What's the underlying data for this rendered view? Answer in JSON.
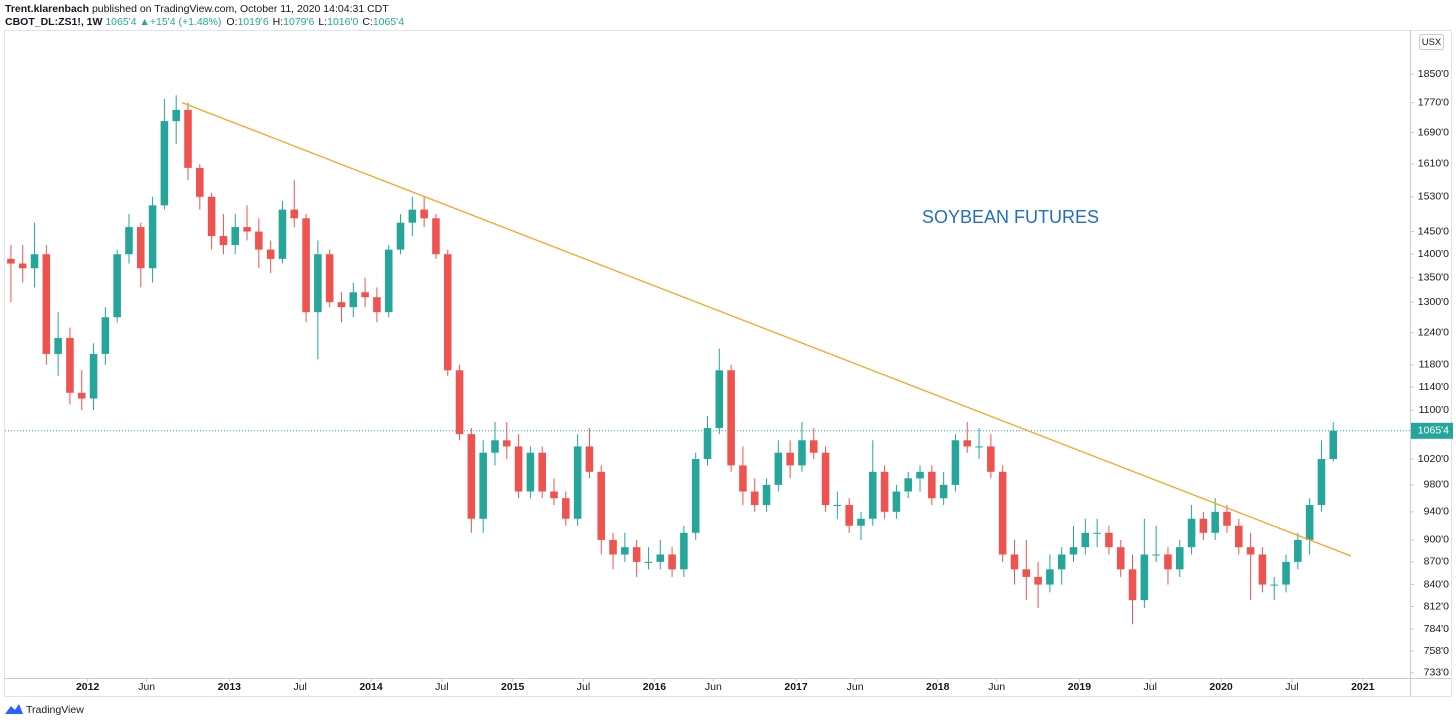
{
  "header": {
    "author": "Trent.klarenbach",
    "published": "published on TradingView.com, October 11, 2020 14:04:31 CDT",
    "symbol": "CBOT_DL:ZS1!, 1W",
    "last": "1065'4",
    "arrow": "▲",
    "change": "+15'4 (+1.48%)",
    "ohlc": [
      {
        "key": "O:",
        "value": "1019'6"
      },
      {
        "key": "H:",
        "value": "1079'6"
      },
      {
        "key": "L:",
        "value": "1016'0"
      },
      {
        "key": "C:",
        "value": "1065'4"
      }
    ]
  },
  "footer": {
    "brand": "TradingView"
  },
  "chart_data": {
    "type": "candlestick",
    "annotation": "SOYBEAN FUTURES",
    "y_unit_label": "USX",
    "log_scale": true,
    "grid": false,
    "up_color": "#26a69a",
    "down_color": "#ef5350",
    "xlim": [
      "2011-06",
      "2021-05"
    ],
    "ylim": [
      727,
      1965
    ],
    "xticks": [
      {
        "value": "2012-01",
        "label": "2012"
      },
      {
        "value": "2012-06",
        "label": "Jun"
      },
      {
        "value": "2013-01",
        "label": "2013"
      },
      {
        "value": "2013-07",
        "label": "Jul"
      },
      {
        "value": "2014-01",
        "label": "2014"
      },
      {
        "value": "2014-07",
        "label": "Jul"
      },
      {
        "value": "2015-01",
        "label": "2015"
      },
      {
        "value": "2015-07",
        "label": "Jul"
      },
      {
        "value": "2016-01",
        "label": "2016"
      },
      {
        "value": "2016-06",
        "label": "Jun"
      },
      {
        "value": "2017-01",
        "label": "2017"
      },
      {
        "value": "2017-06",
        "label": "Jun"
      },
      {
        "value": "2018-01",
        "label": "2018"
      },
      {
        "value": "2018-06",
        "label": "Jun"
      },
      {
        "value": "2019-01",
        "label": "2019"
      },
      {
        "value": "2019-07",
        "label": "Jul"
      },
      {
        "value": "2020-01",
        "label": "2020"
      },
      {
        "value": "2020-07",
        "label": "Jul"
      },
      {
        "value": "2021-01",
        "label": "2021"
      }
    ],
    "yticks": [
      {
        "value": 1850,
        "label": "1850'0"
      },
      {
        "value": 1770,
        "label": "1770'0"
      },
      {
        "value": 1690,
        "label": "1690'0"
      },
      {
        "value": 1610,
        "label": "1610'0"
      },
      {
        "value": 1530,
        "label": "1530'0"
      },
      {
        "value": 1450,
        "label": "1450'0"
      },
      {
        "value": 1400,
        "label": "1400'0"
      },
      {
        "value": 1350,
        "label": "1350'0"
      },
      {
        "value": 1300,
        "label": "1300'0"
      },
      {
        "value": 1240,
        "label": "1240'0"
      },
      {
        "value": 1180,
        "label": "1180'0"
      },
      {
        "value": 1140,
        "label": "1140'0"
      },
      {
        "value": 1100,
        "label": "1100'0"
      },
      {
        "value": 1020,
        "label": "1020'0"
      },
      {
        "value": 980,
        "label": "980'0"
      },
      {
        "value": 940,
        "label": "940'0"
      },
      {
        "value": 900,
        "label": "900'0"
      },
      {
        "value": 870,
        "label": "870'0"
      },
      {
        "value": 840,
        "label": "840'0"
      },
      {
        "value": 812,
        "label": "812'0"
      },
      {
        "value": 784,
        "label": "784'0"
      },
      {
        "value": 758,
        "label": "758'0"
      },
      {
        "value": 733,
        "label": "733'0"
      }
    ],
    "last_price": {
      "value": 1065.5,
      "label": "1065'4",
      "color": "#26a69a"
    },
    "trendline": {
      "color": "#f5a623",
      "x": [
        "2012-09",
        "2020-12"
      ],
      "y": [
        1770,
        878
      ]
    },
    "x": [
      "2011-06",
      "2011-07",
      "2011-08",
      "2011-09",
      "2011-10",
      "2011-11",
      "2011-12",
      "2012-01",
      "2012-02",
      "2012-03",
      "2012-04",
      "2012-05",
      "2012-06",
      "2012-07",
      "2012-08",
      "2012-09",
      "2012-10",
      "2012-11",
      "2012-12",
      "2013-01",
      "2013-02",
      "2013-03",
      "2013-04",
      "2013-05",
      "2013-06",
      "2013-07",
      "2013-08",
      "2013-09",
      "2013-10",
      "2013-11",
      "2013-12",
      "2014-01",
      "2014-02",
      "2014-03",
      "2014-04",
      "2014-05",
      "2014-06",
      "2014-07",
      "2014-08",
      "2014-09",
      "2014-10",
      "2014-11",
      "2014-12",
      "2015-01",
      "2015-02",
      "2015-03",
      "2015-04",
      "2015-05",
      "2015-06",
      "2015-07",
      "2015-08",
      "2015-09",
      "2015-10",
      "2015-11",
      "2015-12",
      "2016-01",
      "2016-02",
      "2016-03",
      "2016-04",
      "2016-05",
      "2016-06",
      "2016-07",
      "2016-08",
      "2016-09",
      "2016-10",
      "2016-11",
      "2016-12",
      "2017-01",
      "2017-02",
      "2017-03",
      "2017-04",
      "2017-05",
      "2017-06",
      "2017-07",
      "2017-08",
      "2017-09",
      "2017-10",
      "2017-11",
      "2017-12",
      "2018-01",
      "2018-02",
      "2018-03",
      "2018-04",
      "2018-05",
      "2018-06",
      "2018-07",
      "2018-08",
      "2018-09",
      "2018-10",
      "2018-11",
      "2018-12",
      "2019-01",
      "2019-02",
      "2019-03",
      "2019-04",
      "2019-05",
      "2019-06",
      "2019-07",
      "2019-08",
      "2019-09",
      "2019-10",
      "2019-11",
      "2019-12",
      "2020-01",
      "2020-02",
      "2020-03",
      "2020-04",
      "2020-05",
      "2020-06",
      "2020-07",
      "2020-08",
      "2020-09",
      "2020-10"
    ],
    "open": [
      1390,
      1380,
      1370,
      1400,
      1200,
      1230,
      1130,
      1120,
      1200,
      1270,
      1400,
      1460,
      1370,
      1510,
      1720,
      1750,
      1600,
      1530,
      1440,
      1420,
      1460,
      1450,
      1410,
      1390,
      1500,
      1480,
      1280,
      1400,
      1300,
      1290,
      1320,
      1310,
      1280,
      1410,
      1470,
      1500,
      1480,
      1400,
      1170,
      1060,
      930,
      1030,
      1050,
      1040,
      970,
      1030,
      970,
      960,
      930,
      1040,
      1000,
      900,
      880,
      890,
      870,
      870,
      880,
      860,
      910,
      1020,
      1070,
      1170,
      1010,
      970,
      950,
      980,
      1030,
      1010,
      1050,
      1030,
      950,
      950,
      920,
      930,
      1000,
      940,
      970,
      990,
      1000,
      960,
      980,
      1050,
      1040,
      1040,
      1000,
      880,
      860,
      850,
      840,
      860,
      880,
      890,
      910,
      910,
      890,
      860,
      820,
      880,
      880,
      860,
      890,
      930,
      910,
      940,
      920,
      890,
      880,
      840,
      840,
      870,
      900,
      950,
      1020
    ],
    "high": [
      1420,
      1420,
      1470,
      1420,
      1280,
      1250,
      1170,
      1220,
      1290,
      1410,
      1490,
      1470,
      1530,
      1780,
      1790,
      1770,
      1610,
      1540,
      1490,
      1490,
      1510,
      1480,
      1430,
      1520,
      1570,
      1490,
      1430,
      1410,
      1320,
      1340,
      1350,
      1330,
      1420,
      1490,
      1530,
      1530,
      1490,
      1410,
      1180,
      1070,
      1050,
      1080,
      1080,
      1060,
      1040,
      1040,
      990,
      970,
      1060,
      1070,
      1010,
      910,
      910,
      900,
      890,
      900,
      890,
      920,
      1030,
      1090,
      1210,
      1180,
      1040,
      990,
      990,
      1050,
      1050,
      1080,
      1070,
      1040,
      970,
      960,
      940,
      1050,
      1010,
      980,
      1000,
      1010,
      1010,
      1000,
      1060,
      1080,
      1070,
      1060,
      1010,
      900,
      900,
      870,
      880,
      890,
      920,
      930,
      930,
      920,
      900,
      880,
      930,
      920,
      890,
      900,
      950,
      940,
      960,
      950,
      930,
      910,
      890,
      850,
      880,
      910,
      960,
      1050,
      1079.75
    ],
    "low": [
      1300,
      1340,
      1330,
      1180,
      1160,
      1110,
      1100,
      1100,
      1180,
      1260,
      1380,
      1330,
      1340,
      1500,
      1660,
      1570,
      1500,
      1410,
      1400,
      1400,
      1430,
      1370,
      1360,
      1380,
      1460,
      1260,
      1190,
      1290,
      1260,
      1270,
      1290,
      1260,
      1270,
      1400,
      1440,
      1460,
      1390,
      1160,
      1050,
      910,
      910,
      1010,
      1020,
      960,
      960,
      960,
      950,
      920,
      920,
      990,
      880,
      860,
      870,
      850,
      860,
      860,
      850,
      850,
      900,
      1010,
      1060,
      1000,
      950,
      940,
      940,
      970,
      990,
      1000,
      1020,
      940,
      930,
      910,
      900,
      920,
      930,
      930,
      960,
      970,
      950,
      950,
      970,
      1030,
      1020,
      990,
      870,
      840,
      820,
      810,
      830,
      840,
      870,
      880,
      890,
      880,
      850,
      790,
      810,
      870,
      840,
      850,
      880,
      900,
      900,
      910,
      880,
      820,
      830,
      820,
      830,
      860,
      880,
      940,
      1016
    ],
    "close": [
      1380,
      1370,
      1400,
      1200,
      1230,
      1130,
      1120,
      1200,
      1270,
      1400,
      1460,
      1370,
      1510,
      1720,
      1750,
      1600,
      1530,
      1440,
      1420,
      1460,
      1450,
      1410,
      1390,
      1500,
      1480,
      1280,
      1400,
      1300,
      1290,
      1320,
      1310,
      1280,
      1410,
      1470,
      1500,
      1480,
      1400,
      1170,
      1060,
      930,
      1030,
      1050,
      1040,
      970,
      1030,
      970,
      960,
      930,
      1040,
      1000,
      900,
      880,
      890,
      870,
      870,
      880,
      860,
      910,
      1020,
      1070,
      1170,
      1010,
      970,
      950,
      980,
      1030,
      1010,
      1050,
      1030,
      950,
      950,
      920,
      930,
      1000,
      940,
      970,
      990,
      1000,
      960,
      980,
      1050,
      1040,
      1040,
      1000,
      880,
      860,
      850,
      840,
      860,
      880,
      890,
      910,
      910,
      890,
      860,
      820,
      880,
      880,
      860,
      890,
      930,
      910,
      940,
      920,
      890,
      880,
      840,
      840,
      870,
      900,
      950,
      1020,
      1065.5
    ]
  }
}
